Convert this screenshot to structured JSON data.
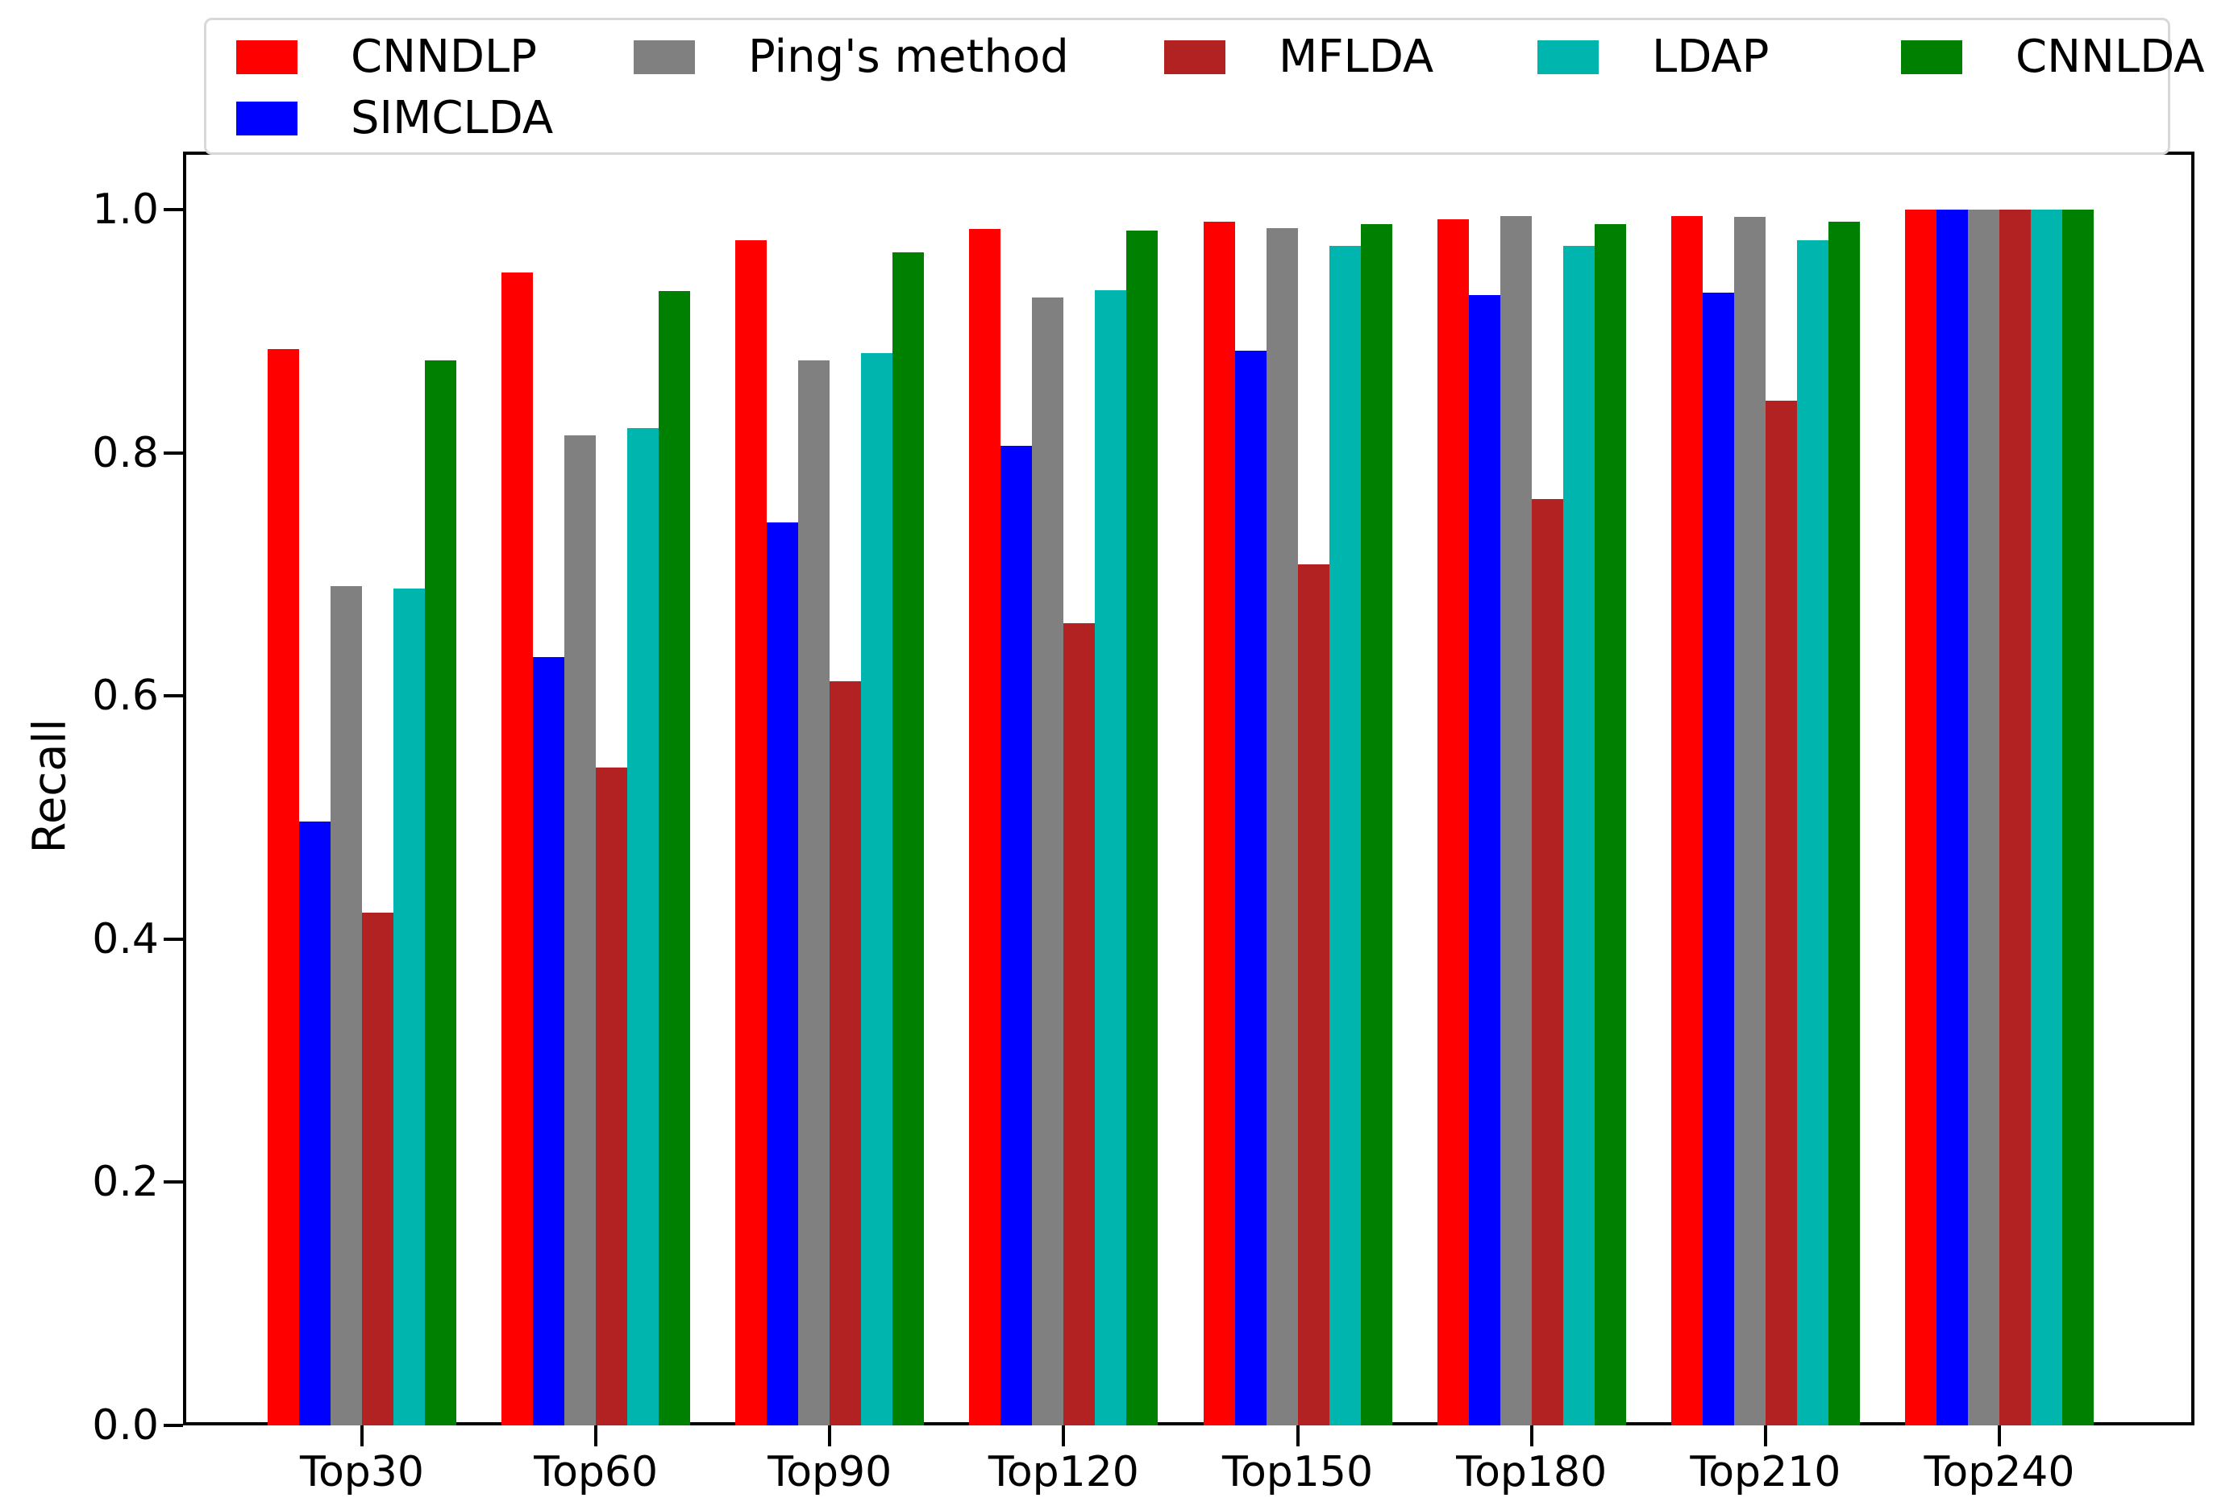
{
  "figure": {
    "background": "#ffffff"
  },
  "legend": {
    "position": "top",
    "entries": [
      {
        "label": "CNNDLP",
        "color": "#ff0000"
      },
      {
        "label": "SIMCLDA",
        "color": "#0000ff"
      },
      {
        "label": "Ping's method",
        "color": "#808080"
      },
      {
        "label": "MFLDA",
        "color": "#b22222"
      },
      {
        "label": "LDAP",
        "color": "#00b5ad"
      },
      {
        "label": "CNNLDA",
        "color": "#008000"
      }
    ]
  },
  "chart_data": {
    "type": "bar",
    "title": "",
    "xlabel": "",
    "ylabel": "Recall",
    "categories": [
      "Top30",
      "Top60",
      "Top90",
      "Top120",
      "Top150",
      "Top180",
      "Top210",
      "Top240"
    ],
    "y_ticks": [
      "0.0",
      "0.2",
      "0.4",
      "0.6",
      "0.8",
      "1.0"
    ],
    "ylim": [
      0,
      1.05
    ],
    "grid": false,
    "legend_position": "top",
    "series": [
      {
        "name": "CNNDLP",
        "color": "#ff0000",
        "values": [
          0.885,
          0.948,
          0.975,
          0.984,
          0.99,
          0.992,
          0.995,
          1.0
        ]
      },
      {
        "name": "SIMCLDA",
        "color": "#0000ff",
        "values": [
          0.497,
          0.632,
          0.743,
          0.806,
          0.884,
          0.93,
          0.932,
          1.0
        ]
      },
      {
        "name": "Ping's method",
        "color": "#808080",
        "values": [
          0.69,
          0.814,
          0.876,
          0.928,
          0.985,
          0.995,
          0.994,
          1.0
        ]
      },
      {
        "name": "MFLDA",
        "color": "#b22222",
        "values": [
          0.422,
          0.541,
          0.612,
          0.66,
          0.708,
          0.762,
          0.843,
          1.0
        ]
      },
      {
        "name": "LDAP",
        "color": "#00b5ad",
        "values": [
          0.688,
          0.82,
          0.882,
          0.934,
          0.97,
          0.97,
          0.975,
          1.0
        ]
      },
      {
        "name": "CNNLDA",
        "color": "#008000",
        "values": [
          0.876,
          0.933,
          0.965,
          0.983,
          0.988,
          0.988,
          0.99,
          1.0
        ]
      }
    ]
  }
}
